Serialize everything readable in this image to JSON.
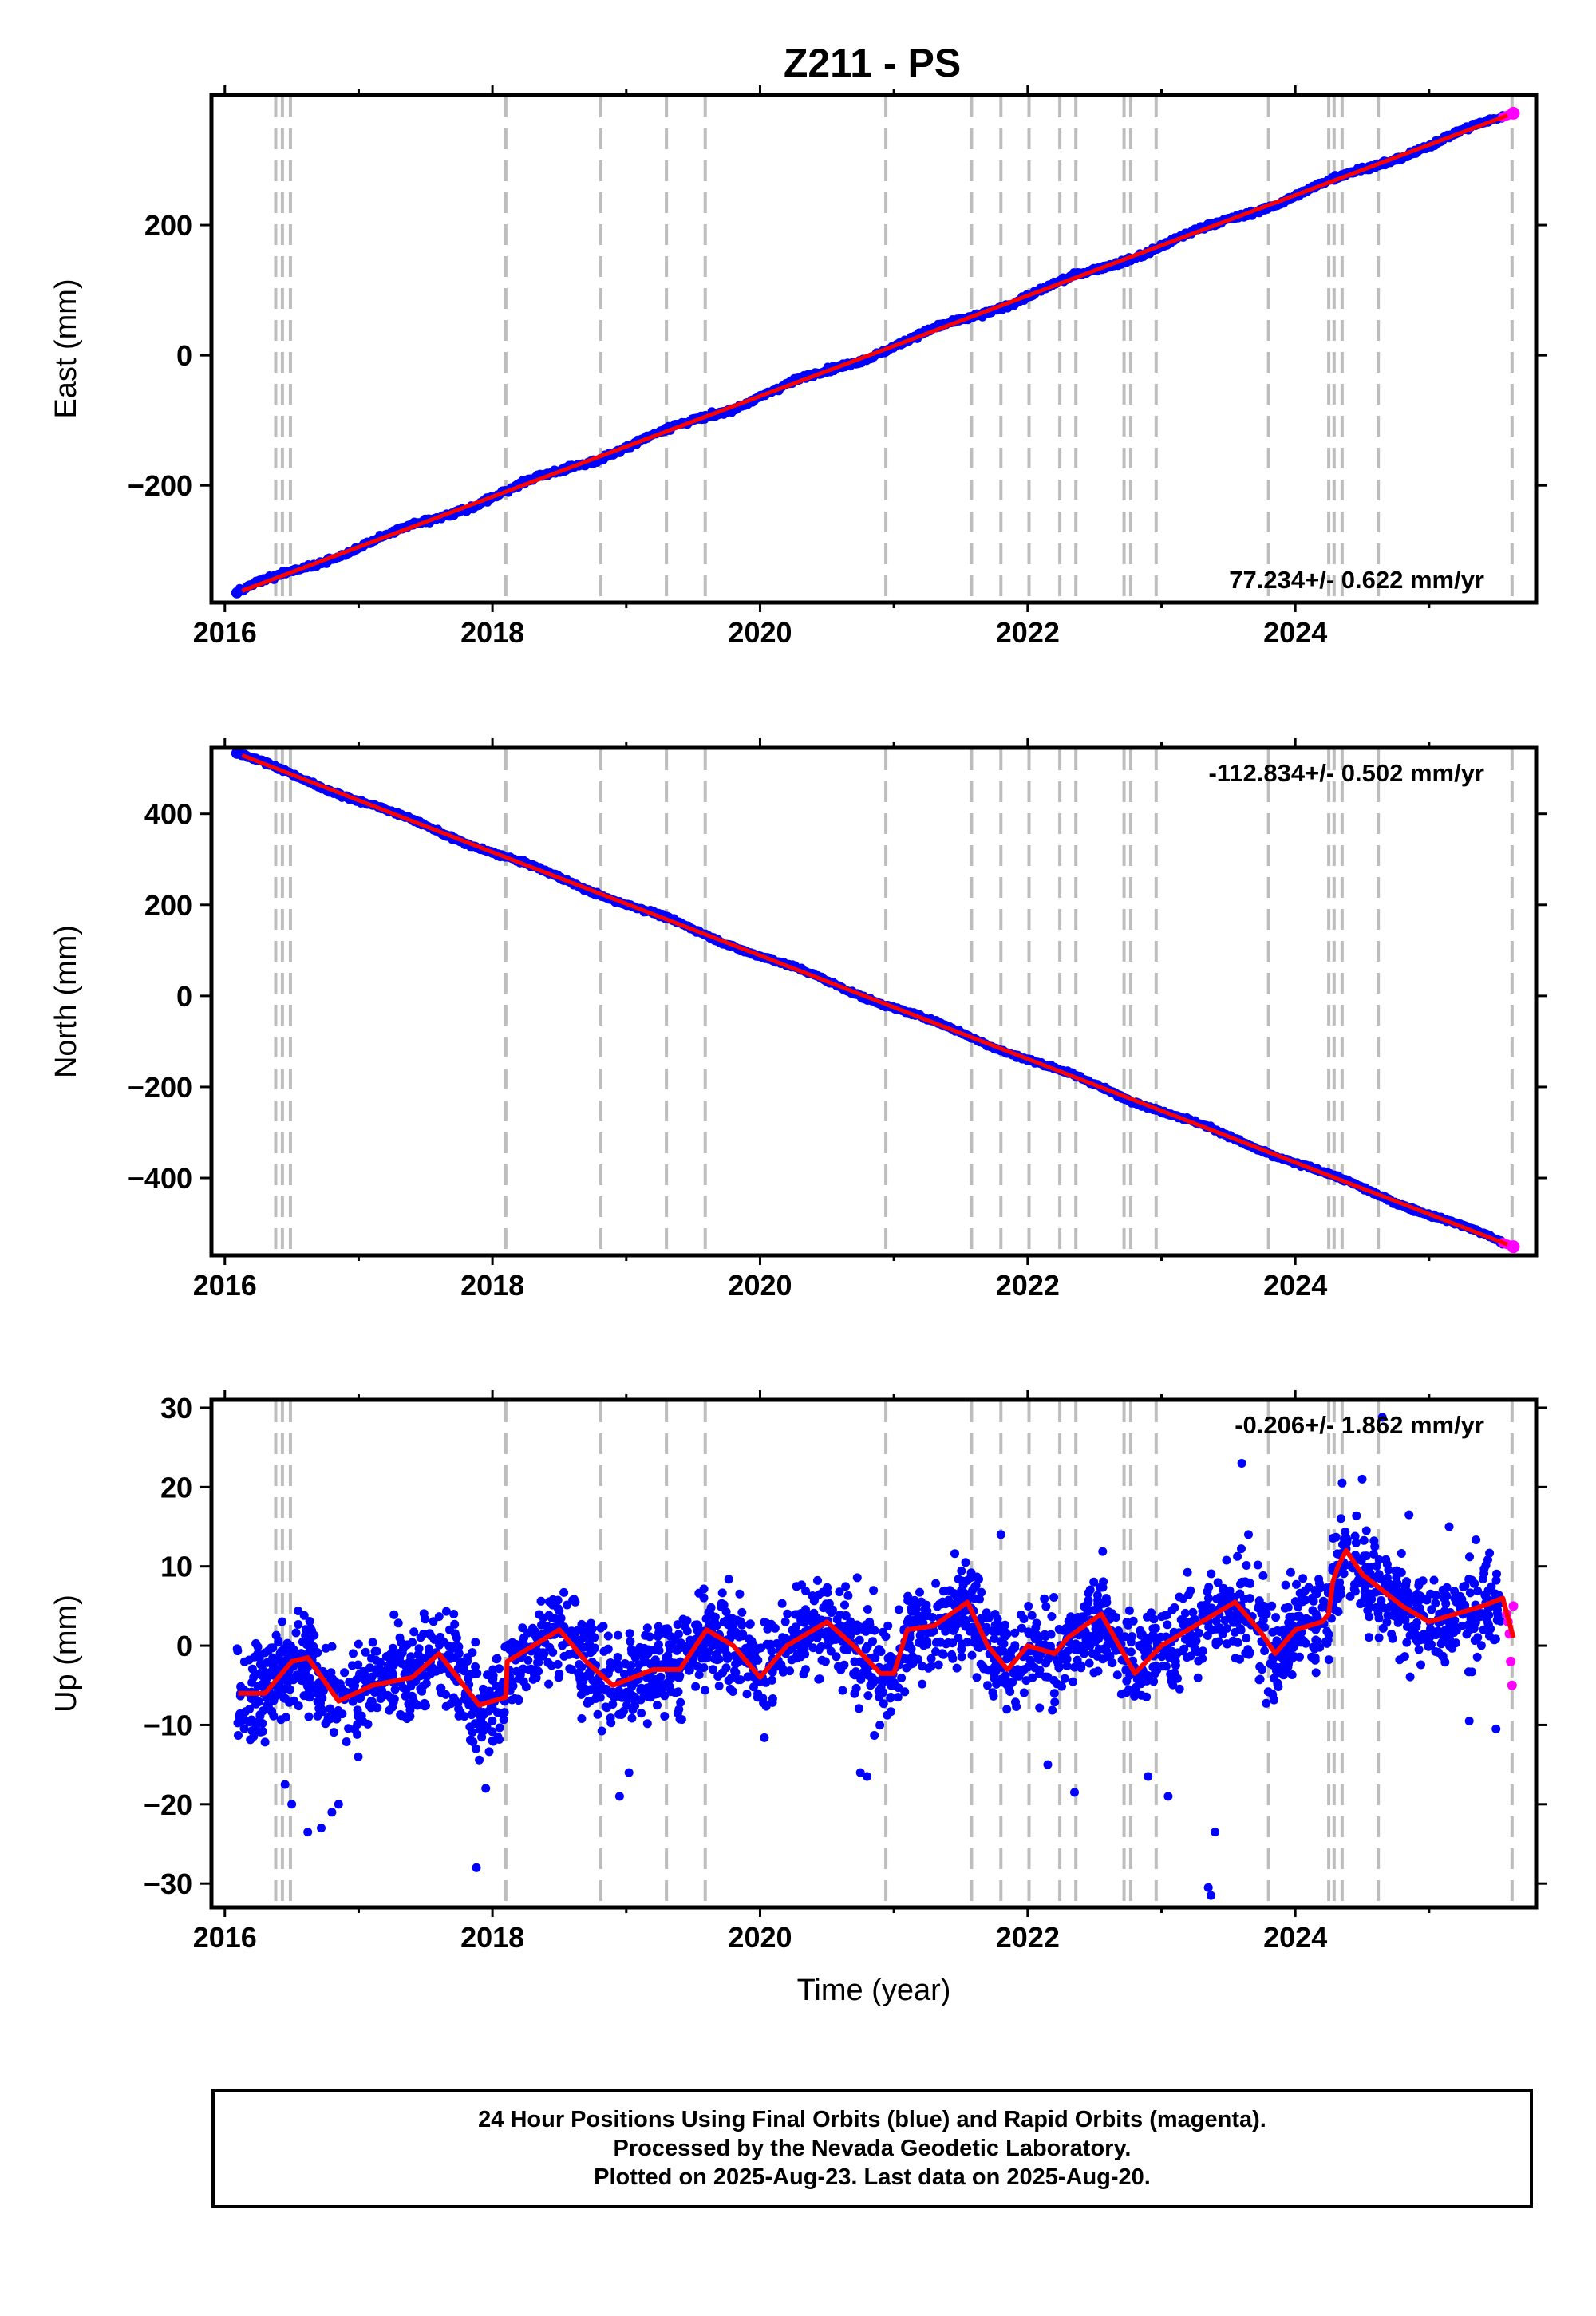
{
  "figure": {
    "title": "Z211 - PS",
    "footer_lines": [
      "24 Hour Positions Using Final Orbits (blue) and Rapid Orbits (magenta).",
      "Processed by the Nevada Geodetic Laboratory.",
      "Plotted on 2025-Aug-23. Last data on 2025-Aug-20."
    ]
  },
  "colors": {
    "final_orbits": "#0000ff",
    "rapid_orbits": "#ff00ff",
    "model_fit": "#ff0000",
    "event_lines": "#bdbdbd"
  },
  "chart_data": [
    {
      "type": "scatter",
      "component": "East",
      "ylabel": "East (mm)",
      "xlabel": "",
      "xlim": [
        2015.9,
        2025.8
      ],
      "ylim": [
        -380,
        400
      ],
      "x_ticks": [
        2016,
        2018,
        2020,
        2022,
        2024
      ],
      "y_ticks": [
        -200,
        0,
        200
      ],
      "rate_label": "77.234+/- 0.622 mm/yr",
      "rate_position": "bottom-right",
      "trend": {
        "start": [
          2016.09,
          -365
        ],
        "end": [
          2025.63,
          372
        ]
      },
      "final_orbit_range": [
        2016.09,
        2025.55
      ],
      "rapid_orbit_range": [
        2025.55,
        2025.63
      ]
    },
    {
      "type": "scatter",
      "component": "North",
      "ylabel": "North (mm)",
      "xlabel": "",
      "xlim": [
        2015.9,
        2025.8
      ],
      "ylim": [
        -570,
        545
      ],
      "x_ticks": [
        2016,
        2018,
        2020,
        2022,
        2024
      ],
      "y_ticks": [
        -400,
        -200,
        0,
        200,
        400
      ],
      "rate_label": "-112.834+/- 0.502 mm/yr",
      "rate_position": "top-right",
      "trend": {
        "start": [
          2016.09,
          533
        ],
        "end": [
          2025.63,
          -551
        ]
      },
      "final_orbit_range": [
        2016.09,
        2025.55
      ],
      "rapid_orbit_range": [
        2025.55,
        2025.63
      ]
    },
    {
      "type": "scatter",
      "component": "Up",
      "ylabel": "Up (mm)",
      "xlabel": "Time (year)",
      "xlim": [
        2015.9,
        2025.8
      ],
      "ylim": [
        -33,
        31
      ],
      "x_ticks": [
        2016,
        2018,
        2020,
        2022,
        2024
      ],
      "y_ticks": [
        -30,
        -20,
        -10,
        0,
        10,
        20,
        30
      ],
      "rate_label": "-0.206+/- 1.862 mm/yr",
      "rate_position": "top-right",
      "model_curve": [
        [
          2016.1,
          -6.0
        ],
        [
          2016.3,
          -6.0
        ],
        [
          2016.5,
          -2.0
        ],
        [
          2016.62,
          -1.5
        ],
        [
          2016.85,
          -7.0
        ],
        [
          2017.1,
          -5.0
        ],
        [
          2017.4,
          -4.0
        ],
        [
          2017.6,
          -1.0
        ],
        [
          2017.9,
          -7.5
        ],
        [
          2018.1,
          -6.5
        ],
        [
          2018.11,
          -2.0
        ],
        [
          2018.5,
          2.0
        ],
        [
          2018.7,
          -2.0
        ],
        [
          2018.9,
          -5.0
        ],
        [
          2019.2,
          -3.0
        ],
        [
          2019.4,
          -3.0
        ],
        [
          2019.6,
          2.0
        ],
        [
          2019.8,
          0.0
        ],
        [
          2020.0,
          -4.0
        ],
        [
          2020.2,
          0.0
        ],
        [
          2020.5,
          3.0
        ],
        [
          2020.7,
          0.0
        ],
        [
          2020.9,
          -3.5
        ],
        [
          2021.0,
          -3.5
        ],
        [
          2021.1,
          2.0
        ],
        [
          2021.3,
          2.5
        ],
        [
          2021.55,
          5.5
        ],
        [
          2021.7,
          0.0
        ],
        [
          2021.85,
          -3.0
        ],
        [
          2022.0,
          0.0
        ],
        [
          2022.2,
          -1.0
        ],
        [
          2022.3,
          1.0
        ],
        [
          2022.55,
          4.0
        ],
        [
          2022.75,
          -2.0
        ],
        [
          2022.8,
          -3.5
        ],
        [
          2023.0,
          0.0
        ],
        [
          2023.2,
          2.0
        ],
        [
          2023.55,
          5.5
        ],
        [
          2023.75,
          1.5
        ],
        [
          2023.85,
          -1.0
        ],
        [
          2024.0,
          2.0
        ],
        [
          2024.2,
          3.0
        ],
        [
          2024.25,
          4.0
        ],
        [
          2024.28,
          8.0
        ],
        [
          2024.32,
          10.0
        ],
        [
          2024.38,
          12.0
        ],
        [
          2024.5,
          9.0
        ],
        [
          2024.65,
          7.0
        ],
        [
          2024.8,
          5.0
        ],
        [
          2025.0,
          3.0
        ],
        [
          2025.2,
          4.0
        ],
        [
          2025.4,
          5.0
        ],
        [
          2025.55,
          6.0
        ],
        [
          2025.63,
          1.0
        ]
      ],
      "outliers": [
        [
          2016.45,
          -17.5
        ],
        [
          2016.5,
          -20.0
        ],
        [
          2016.62,
          -23.5
        ],
        [
          2016.72,
          -23.0
        ],
        [
          2016.8,
          -21.0
        ],
        [
          2016.85,
          -20.0
        ],
        [
          2017.88,
          -28.0
        ],
        [
          2017.95,
          -18.0
        ],
        [
          2018.95,
          -19.0
        ],
        [
          2019.02,
          -16.0
        ],
        [
          2020.75,
          -16.0
        ],
        [
          2020.8,
          -16.5
        ],
        [
          2021.8,
          14.0
        ],
        [
          2022.15,
          -15.0
        ],
        [
          2022.35,
          -18.5
        ],
        [
          2022.9,
          -16.5
        ],
        [
          2023.05,
          -19.0
        ],
        [
          2023.35,
          -30.5
        ],
        [
          2023.37,
          -31.5
        ],
        [
          2023.4,
          -23.5
        ],
        [
          2023.6,
          23.0
        ],
        [
          2023.65,
          14.0
        ],
        [
          2024.35,
          20.5
        ],
        [
          2024.5,
          21.0
        ],
        [
          2024.65,
          28.8
        ],
        [
          2024.85,
          16.5
        ],
        [
          2025.15,
          15.0
        ],
        [
          2025.5,
          -10.5
        ],
        [
          2025.3,
          -9.5
        ]
      ],
      "rapid_orbit_points": [
        [
          2025.58,
          4.0
        ],
        [
          2025.59,
          3.0
        ],
        [
          2025.6,
          1.5
        ],
        [
          2025.61,
          -2.0
        ],
        [
          2025.62,
          -5.0
        ],
        [
          2025.63,
          5.0
        ]
      ],
      "final_orbit_range": [
        2016.09,
        2025.55
      ],
      "rapid_orbit_range": [
        2025.55,
        2025.63
      ]
    }
  ],
  "event_lines": [
    2016.38,
    2016.43,
    2016.49,
    2018.1,
    2018.81,
    2019.3,
    2019.59,
    2020.94,
    2021.58,
    2021.8,
    2022.01,
    2022.24,
    2022.36,
    2022.72,
    2022.77,
    2022.96,
    2023.8,
    2024.25,
    2024.29,
    2024.35,
    2024.62,
    2025.62
  ]
}
